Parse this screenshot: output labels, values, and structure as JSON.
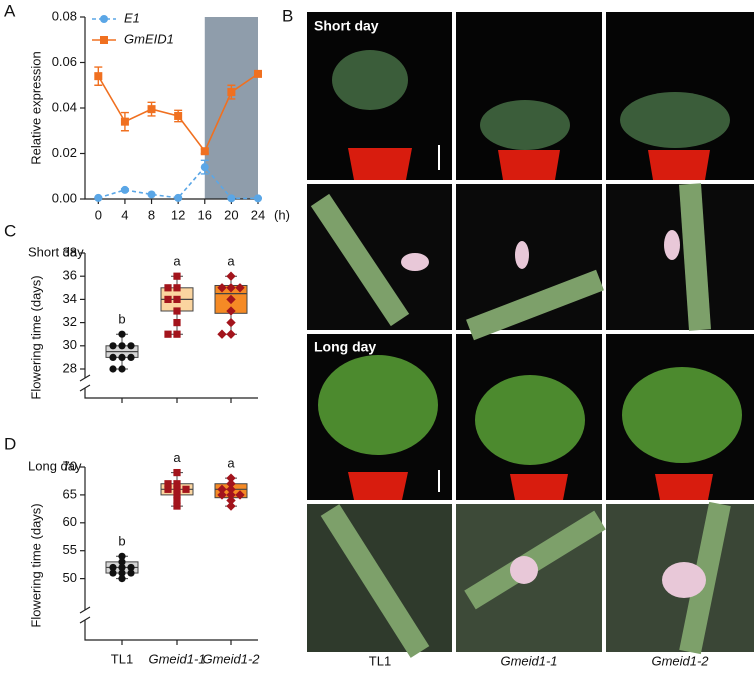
{
  "figure": {
    "panel_labels": [
      "A",
      "B",
      "C",
      "D"
    ],
    "photos": {
      "row_labels": [
        "Short day",
        "Long day"
      ],
      "column_labels": [
        "TL1",
        "Gmeid1-1",
        "Gmeid1-2"
      ]
    }
  },
  "chart_data": [
    {
      "type": "line",
      "ylabel": "Relative expression",
      "xlabel": "(h)",
      "x": [
        0,
        4,
        8,
        12,
        16,
        20,
        24
      ],
      "xlim": [
        -2,
        24
      ],
      "xticks": [
        0,
        4,
        8,
        12,
        16,
        20,
        24
      ],
      "ylim": [
        0,
        0.08
      ],
      "yticks": [
        {
          "value": 0,
          "label": "0.00"
        },
        0.02,
        0.04,
        0.06,
        0.08
      ],
      "shade": [
        16,
        24
      ],
      "shade_color": "#8f9dab",
      "series": [
        {
          "name": "E1",
          "color": "#5aa6e6",
          "dashed": true,
          "marker": "circle",
          "values": [
            0.0005,
            0.004,
            0.002,
            0.0005,
            0.014,
            0.0003,
            0.0003
          ],
          "errors": [
            0,
            0.0005,
            0,
            0,
            0.003,
            0,
            0
          ]
        },
        {
          "name": "GmEID1",
          "color": "#f07020",
          "dashed": false,
          "marker": "square",
          "values": [
            0.054,
            0.034,
            0.0395,
            0.0365,
            0.021,
            0.047,
            0.055
          ],
          "errors": [
            0.004,
            0.004,
            0.003,
            0.0025,
            0.001,
            0.003,
            0.001
          ]
        }
      ]
    },
    {
      "type": "box",
      "title": "Short day",
      "ylabel": "Flowering time (days)",
      "categories": [
        null,
        null,
        null
      ],
      "ylim": [
        25.5,
        38
      ],
      "yticks": [
        28,
        30,
        32,
        34,
        36,
        38
      ],
      "colors": [
        "#d6d6d6",
        "#fbd5a0",
        "#f58a25"
      ],
      "point_colors": [
        "#111111",
        "#a3141c",
        "#a3141c"
      ],
      "markers": [
        "circle",
        "square",
        "diamond"
      ],
      "letters": [
        "b",
        "a",
        "a"
      ],
      "boxes": [
        {
          "min": 28,
          "q1": 29,
          "median": 29.5,
          "q3": 30,
          "max": 31,
          "points": [
            31,
            30,
            30,
            30,
            29,
            29,
            29,
            28,
            28
          ]
        },
        {
          "min": 31,
          "q1": 33,
          "median": 34,
          "q3": 35,
          "max": 36,
          "points": [
            36,
            35,
            35,
            34,
            34,
            33,
            32,
            31,
            31
          ]
        },
        {
          "min": 31,
          "q1": 32.8,
          "median": 34.5,
          "q3": 35.2,
          "max": 36,
          "points": [
            36,
            35,
            35,
            35,
            34,
            33,
            32,
            31,
            31
          ]
        }
      ]
    },
    {
      "type": "box",
      "title": "Long day",
      "ylabel": "Flowering time (days)",
      "categories": [
        "TL1",
        "Gmeid1-1",
        "Gmeid1-2"
      ],
      "ylim": [
        39,
        70
      ],
      "yticks": [
        50,
        55,
        60,
        65,
        70
      ],
      "colors": [
        "#d6d6d6",
        "#fbd5a0",
        "#f58a25"
      ],
      "point_colors": [
        "#111111",
        "#a3141c",
        "#a3141c"
      ],
      "markers": [
        "circle",
        "square",
        "diamond"
      ],
      "letters": [
        "b",
        "a",
        "a"
      ],
      "boxes": [
        {
          "min": 50,
          "q1": 51,
          "median": 52,
          "q3": 53,
          "max": 54,
          "points": [
            54,
            53,
            52,
            52,
            52,
            51,
            51,
            51,
            50
          ]
        },
        {
          "min": 63,
          "q1": 65,
          "median": 66,
          "q3": 67,
          "max": 69,
          "points": [
            69,
            67,
            67,
            66,
            66,
            66,
            65,
            64,
            63
          ]
        },
        {
          "min": 63,
          "q1": 64.5,
          "median": 66,
          "q3": 67,
          "max": 68,
          "points": [
            68,
            67,
            66,
            66,
            65,
            65,
            65,
            64,
            63
          ]
        }
      ]
    }
  ]
}
